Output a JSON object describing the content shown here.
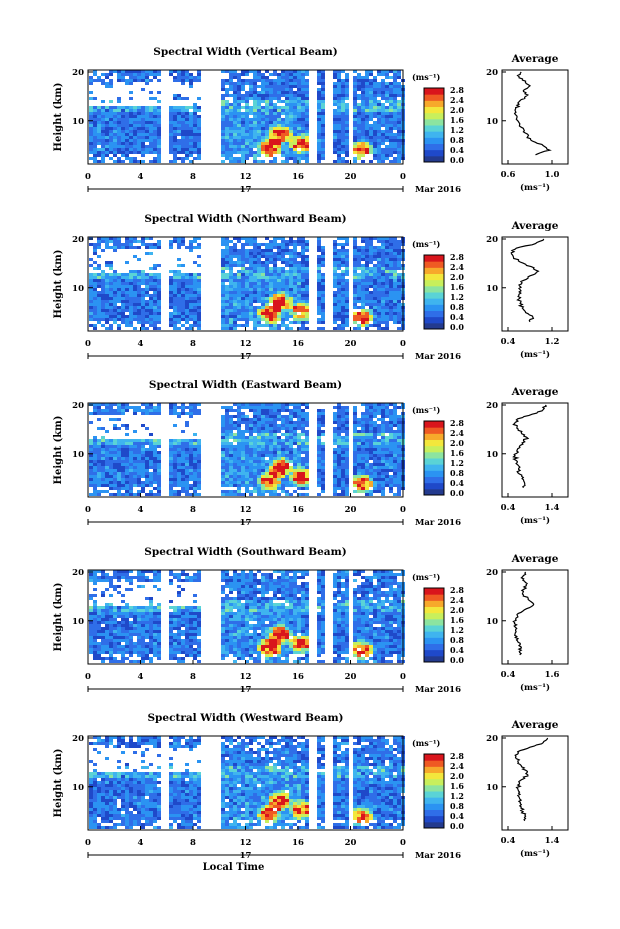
{
  "chart_data": [
    {
      "type": "heatmap",
      "title": "Spectral Width (Vertical Beam)",
      "ylabel": "Height (km)",
      "x_ticks": [
        "0",
        "4",
        "8",
        "12",
        "16",
        "20",
        "0"
      ],
      "y_ticks": [
        "20",
        "10"
      ],
      "date_label": "17",
      "month_label": "Mar 2016",
      "colorbar": {
        "unit": "(ms⁻¹)",
        "ticks": [
          "2.8",
          "2.4",
          "2.0",
          "1.6",
          "1.2",
          "0.8",
          "0.4",
          "0.0"
        ]
      },
      "average_profile": {
        "title": "Average",
        "x_ticks": [
          "0.6",
          "1.0"
        ],
        "x_unit": "(ms⁻¹)",
        "y_ticks": [
          "20",
          "10"
        ],
        "profile": [
          [
            0.85,
            2
          ],
          [
            0.98,
            3
          ],
          [
            0.92,
            4
          ],
          [
            0.82,
            5
          ],
          [
            0.78,
            6
          ],
          [
            0.74,
            7
          ],
          [
            0.72,
            8
          ],
          [
            0.7,
            9
          ],
          [
            0.68,
            10
          ],
          [
            0.66,
            11
          ],
          [
            0.67,
            12
          ],
          [
            0.7,
            13
          ],
          [
            0.72,
            14
          ],
          [
            0.78,
            15
          ],
          [
            0.74,
            16
          ],
          [
            0.8,
            17
          ],
          [
            0.76,
            18
          ],
          [
            0.7,
            19
          ],
          [
            0.72,
            20
          ]
        ]
      }
    },
    {
      "type": "heatmap",
      "title": "Spectral Width (Northward Beam)",
      "ylabel": "Height (km)",
      "x_ticks": [
        "0",
        "4",
        "8",
        "12",
        "16",
        "20",
        "0"
      ],
      "y_ticks": [
        "20",
        "10"
      ],
      "date_label": "17",
      "month_label": "Mar 2016",
      "colorbar": {
        "unit": "(ms⁻¹)",
        "ticks": [
          "2.8",
          "2.4",
          "2.0",
          "1.6",
          "1.2",
          "0.8",
          "0.4",
          "0.0"
        ]
      },
      "average_profile": {
        "title": "Average",
        "x_ticks": [
          "0.4",
          "1.2"
        ],
        "x_unit": "(ms⁻¹)",
        "y_ticks": [
          "20",
          "10"
        ],
        "profile": [
          [
            0.8,
            2
          ],
          [
            0.85,
            3
          ],
          [
            0.72,
            4
          ],
          [
            0.66,
            5
          ],
          [
            0.62,
            6
          ],
          [
            0.6,
            7
          ],
          [
            0.6,
            8
          ],
          [
            0.62,
            9
          ],
          [
            0.6,
            10
          ],
          [
            0.68,
            11
          ],
          [
            0.8,
            12
          ],
          [
            0.95,
            13
          ],
          [
            0.82,
            14
          ],
          [
            0.62,
            15
          ],
          [
            0.5,
            16
          ],
          [
            0.46,
            17
          ],
          [
            0.55,
            18
          ],
          [
            0.9,
            19
          ],
          [
            1.05,
            20
          ]
        ]
      }
    },
    {
      "type": "heatmap",
      "title": "Spectral Width (Eastward Beam)",
      "ylabel": "Height (km)",
      "x_ticks": [
        "0",
        "4",
        "8",
        "12",
        "16",
        "20",
        "0"
      ],
      "y_ticks": [
        "20",
        "10"
      ],
      "date_label": "17",
      "month_label": "Mar 2016",
      "colorbar": {
        "unit": "(ms⁻¹)",
        "ticks": [
          "2.8",
          "2.4",
          "2.0",
          "1.6",
          "1.2",
          "0.8",
          "0.4",
          "0.0"
        ]
      },
      "average_profile": {
        "title": "Average",
        "x_ticks": [
          "0.4",
          "1.4"
        ],
        "x_unit": "(ms⁻¹)",
        "y_ticks": [
          "20",
          "10"
        ],
        "profile": [
          [
            0.75,
            2
          ],
          [
            0.78,
            3
          ],
          [
            0.72,
            4
          ],
          [
            0.66,
            5
          ],
          [
            0.64,
            6
          ],
          [
            0.62,
            7
          ],
          [
            0.58,
            8
          ],
          [
            0.56,
            9
          ],
          [
            0.6,
            10
          ],
          [
            0.66,
            11
          ],
          [
            0.78,
            12
          ],
          [
            0.82,
            13
          ],
          [
            0.7,
            14
          ],
          [
            0.6,
            15
          ],
          [
            0.55,
            16
          ],
          [
            0.62,
            17
          ],
          [
            0.95,
            18
          ],
          [
            1.2,
            19
          ],
          [
            1.25,
            20
          ]
        ]
      }
    },
    {
      "type": "heatmap",
      "title": "Spectral Width (Southward Beam)",
      "ylabel": "Height (km)",
      "x_ticks": [
        "0",
        "4",
        "8",
        "12",
        "16",
        "20",
        "0"
      ],
      "y_ticks": [
        "20",
        "10"
      ],
      "date_label": "17",
      "month_label": "Mar 2016",
      "colorbar": {
        "unit": "(ms⁻¹)",
        "ticks": [
          "2.8",
          "2.4",
          "2.0",
          "1.6",
          "1.2",
          "0.8",
          "0.4",
          "0.0"
        ]
      },
      "average_profile": {
        "title": "Average",
        "x_ticks": [
          "0.4",
          "1.6"
        ],
        "x_unit": "(ms⁻¹)",
        "y_ticks": [
          "20",
          "10"
        ],
        "profile": [
          [
            0.72,
            2
          ],
          [
            0.76,
            3
          ],
          [
            0.7,
            4
          ],
          [
            0.66,
            5
          ],
          [
            0.64,
            6
          ],
          [
            0.62,
            7
          ],
          [
            0.6,
            8
          ],
          [
            0.58,
            9
          ],
          [
            0.62,
            10
          ],
          [
            0.68,
            11
          ],
          [
            0.9,
            12
          ],
          [
            1.1,
            13
          ],
          [
            0.95,
            14
          ],
          [
            0.82,
            15
          ],
          [
            0.78,
            16
          ],
          [
            0.9,
            17
          ],
          [
            0.85,
            18
          ],
          [
            0.8,
            19
          ],
          [
            0.88,
            20
          ]
        ]
      }
    },
    {
      "type": "heatmap",
      "title": "Spectral Width (Westward Beam)",
      "ylabel": "Height (km)",
      "xlabel": "Local Time",
      "x_ticks": [
        "0",
        "4",
        "8",
        "12",
        "16",
        "20",
        "0"
      ],
      "y_ticks": [
        "20",
        "10"
      ],
      "date_label": "17",
      "month_label": "Mar 2016",
      "colorbar": {
        "unit": "(ms⁻¹)",
        "ticks": [
          "2.8",
          "2.4",
          "2.0",
          "1.6",
          "1.2",
          "0.8",
          "0.4",
          "0.0"
        ]
      },
      "average_profile": {
        "title": "Average",
        "x_ticks": [
          "0.4",
          "1.4"
        ],
        "x_unit": "(ms⁻¹)",
        "y_ticks": [
          "20",
          "10"
        ],
        "profile": [
          [
            0.78,
            2
          ],
          [
            0.8,
            3
          ],
          [
            0.74,
            4
          ],
          [
            0.7,
            5
          ],
          [
            0.68,
            6
          ],
          [
            0.66,
            7
          ],
          [
            0.64,
            8
          ],
          [
            0.62,
            9
          ],
          [
            0.66,
            10
          ],
          [
            0.72,
            11
          ],
          [
            0.85,
            12
          ],
          [
            0.8,
            13
          ],
          [
            0.7,
            14
          ],
          [
            0.62,
            15
          ],
          [
            0.58,
            16
          ],
          [
            0.62,
            17
          ],
          [
            0.9,
            18
          ],
          [
            1.2,
            19
          ],
          [
            1.3,
            20
          ]
        ]
      }
    }
  ]
}
